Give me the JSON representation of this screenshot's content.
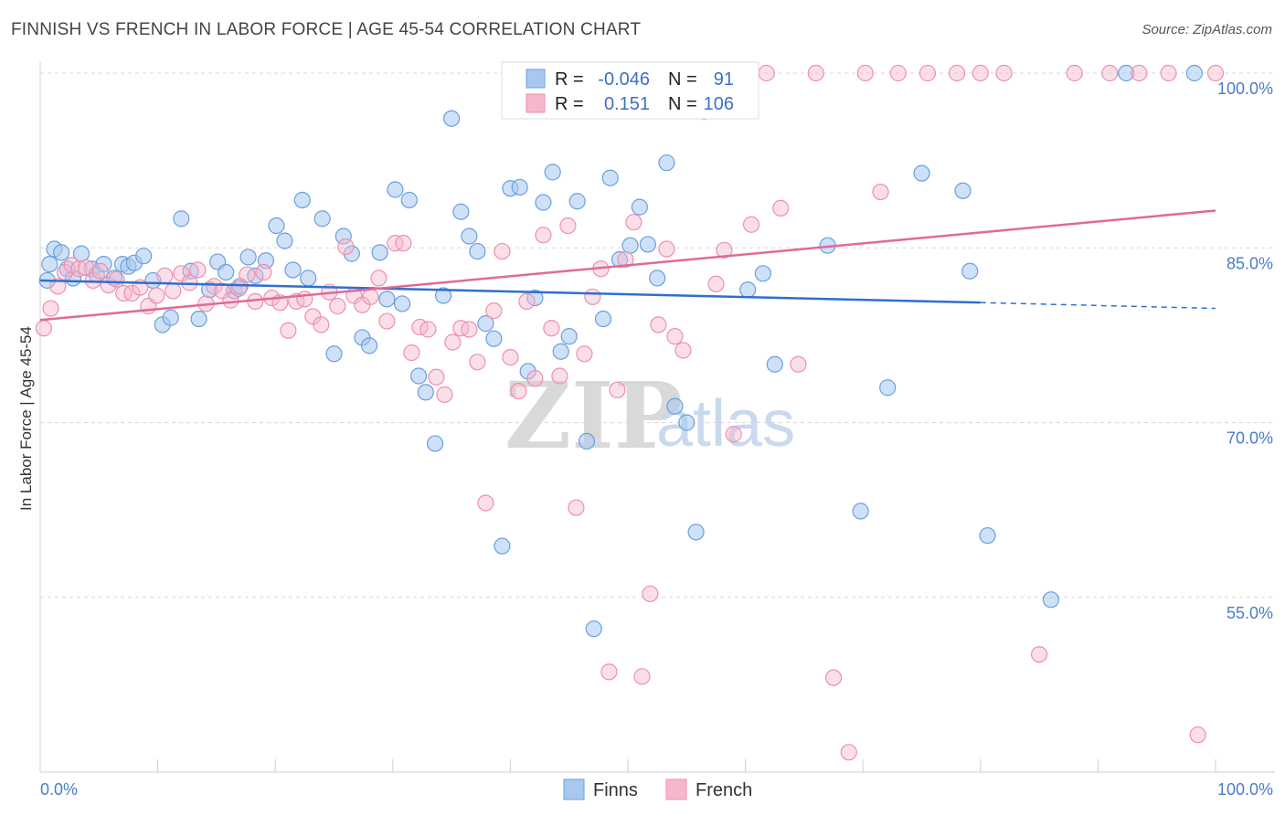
{
  "title": "FINNISH VS FRENCH IN LABOR FORCE | AGE 45-54 CORRELATION CHART",
  "source": "Source: ZipAtlas.com",
  "watermark": {
    "zip": "ZIP",
    "atlas": "atlas"
  },
  "chart_data": {
    "type": "scatter",
    "title": "FINNISH VS FRENCH IN LABOR FORCE | AGE 45-54 CORRELATION CHART",
    "ylabel": "In Labor Force | Age 45-54",
    "xlim": [
      0,
      100
    ],
    "ylim": [
      40,
      100
    ],
    "x_tick_labels": {
      "left": "0.0%",
      "right": "100.0%"
    },
    "y_ticks": [
      {
        "value": 100,
        "label": "100.0%"
      },
      {
        "value": 85,
        "label": "85.0%"
      },
      {
        "value": 70,
        "label": "70.0%"
      },
      {
        "value": 55,
        "label": "55.0%"
      }
    ],
    "grid": "horizontal dashed",
    "legend_top": [
      {
        "r_label": "R =",
        "r_value": "-0.046",
        "n_label": "N =",
        "n_value": "91",
        "color": "#a8c8f0"
      },
      {
        "r_label": "R =",
        "r_value": "0.151",
        "n_label": "N =",
        "n_value": "106",
        "color": "#f5b8cb"
      }
    ],
    "legend_bottom": [
      "Finns",
      "French"
    ],
    "colors": {
      "finns": "#6a9fe0",
      "french": "#ef8fae",
      "finns_line": "#2e6fd0",
      "french_line": "#e06a96"
    },
    "series": [
      {
        "name": "Finns",
        "trend": {
          "x0": 0,
          "y0": 82.2,
          "x1": 80,
          "y1": 80.3,
          "dash_to_x": 100,
          "dash_to_y": 79.8
        },
        "points": [
          [
            0.8,
            83.6
          ],
          [
            1.2,
            84.9
          ],
          [
            1.8,
            84.6
          ],
          [
            2.3,
            83.2
          ],
          [
            2.8,
            82.4
          ],
          [
            3.5,
            84.5
          ],
          [
            4.4,
            83.2
          ],
          [
            4.8,
            82.7
          ],
          [
            5.4,
            83.6
          ],
          [
            6.3,
            82.4
          ],
          [
            7.0,
            83.6
          ],
          [
            7.5,
            83.4
          ],
          [
            8.0,
            83.7
          ],
          [
            8.8,
            84.3
          ],
          [
            9.6,
            82.2
          ],
          [
            10.4,
            78.4
          ],
          [
            11.1,
            79.0
          ],
          [
            12.0,
            87.5
          ],
          [
            12.8,
            83.0
          ],
          [
            13.5,
            78.9
          ],
          [
            14.4,
            81.4
          ],
          [
            15.1,
            83.8
          ],
          [
            15.8,
            82.9
          ],
          [
            16.5,
            81.3
          ],
          [
            17.0,
            81.7
          ],
          [
            17.7,
            84.2
          ],
          [
            18.3,
            82.6
          ],
          [
            19.2,
            83.9
          ],
          [
            20.1,
            86.9
          ],
          [
            20.8,
            85.6
          ],
          [
            21.5,
            83.1
          ],
          [
            22.3,
            89.1
          ],
          [
            22.8,
            82.4
          ],
          [
            24.0,
            87.5
          ],
          [
            25.0,
            75.9
          ],
          [
            25.8,
            86.0
          ],
          [
            26.5,
            84.5
          ],
          [
            27.4,
            77.3
          ],
          [
            28.0,
            76.6
          ],
          [
            28.9,
            84.6
          ],
          [
            29.5,
            80.6
          ],
          [
            30.2,
            90.0
          ],
          [
            30.8,
            80.2
          ],
          [
            31.4,
            89.1
          ],
          [
            32.2,
            74.0
          ],
          [
            32.8,
            72.6
          ],
          [
            33.6,
            68.2
          ],
          [
            34.3,
            80.9
          ],
          [
            35.0,
            96.1
          ],
          [
            35.8,
            88.1
          ],
          [
            36.5,
            86.0
          ],
          [
            37.2,
            84.7
          ],
          [
            37.9,
            78.5
          ],
          [
            38.6,
            77.2
          ],
          [
            39.3,
            59.4
          ],
          [
            40.0,
            90.1
          ],
          [
            40.8,
            90.2
          ],
          [
            41.5,
            74.4
          ],
          [
            42.1,
            80.7
          ],
          [
            42.8,
            88.9
          ],
          [
            43.6,
            91.5
          ],
          [
            44.3,
            76.1
          ],
          [
            45.0,
            77.4
          ],
          [
            45.7,
            89.0
          ],
          [
            46.5,
            68.4
          ],
          [
            47.1,
            52.3
          ],
          [
            47.9,
            78.9
          ],
          [
            48.5,
            91.0
          ],
          [
            49.3,
            84.0
          ],
          [
            50.2,
            85.2
          ],
          [
            51.0,
            88.5
          ],
          [
            51.7,
            85.3
          ],
          [
            52.5,
            82.4
          ],
          [
            53.3,
            92.3
          ],
          [
            54.0,
            71.4
          ],
          [
            55.0,
            70.0
          ],
          [
            55.8,
            60.6
          ],
          [
            60.2,
            81.4
          ],
          [
            61.5,
            82.8
          ],
          [
            62.5,
            75.0
          ],
          [
            67.0,
            85.2
          ],
          [
            69.8,
            62.4
          ],
          [
            72.1,
            73.0
          ],
          [
            75.0,
            91.4
          ],
          [
            78.5,
            89.9
          ],
          [
            79.1,
            83.0
          ],
          [
            80.6,
            60.3
          ],
          [
            86.0,
            54.8
          ],
          [
            92.4,
            100.0
          ],
          [
            98.2,
            100.0
          ],
          [
            0.6,
            82.2
          ]
        ]
      },
      {
        "name": "French",
        "trend": {
          "x0": 0,
          "y0": 78.8,
          "x1": 100,
          "y1": 88.2
        },
        "points": [
          [
            0.3,
            78.1
          ],
          [
            0.9,
            79.8
          ],
          [
            1.5,
            81.7
          ],
          [
            2.1,
            82.9
          ],
          [
            2.7,
            83.5
          ],
          [
            3.3,
            83.2
          ],
          [
            3.9,
            83.3
          ],
          [
            4.5,
            82.2
          ],
          [
            5.1,
            83.0
          ],
          [
            5.8,
            81.8
          ],
          [
            6.5,
            82.3
          ],
          [
            7.1,
            81.1
          ],
          [
            7.8,
            81.1
          ],
          [
            8.5,
            81.6
          ],
          [
            9.2,
            80.0
          ],
          [
            9.9,
            80.9
          ],
          [
            10.6,
            82.6
          ],
          [
            11.3,
            81.3
          ],
          [
            12.0,
            82.8
          ],
          [
            12.7,
            82.0
          ],
          [
            13.4,
            83.1
          ],
          [
            14.1,
            80.2
          ],
          [
            14.8,
            81.7
          ],
          [
            15.5,
            81.3
          ],
          [
            16.2,
            80.5
          ],
          [
            16.9,
            81.5
          ],
          [
            17.6,
            82.7
          ],
          [
            18.3,
            80.4
          ],
          [
            19.0,
            82.9
          ],
          [
            19.7,
            80.7
          ],
          [
            20.4,
            80.3
          ],
          [
            21.1,
            77.9
          ],
          [
            21.8,
            80.4
          ],
          [
            22.5,
            80.6
          ],
          [
            23.2,
            79.1
          ],
          [
            23.9,
            78.4
          ],
          [
            24.6,
            81.2
          ],
          [
            25.3,
            80.0
          ],
          [
            26.0,
            85.1
          ],
          [
            26.7,
            80.9
          ],
          [
            27.4,
            80.1
          ],
          [
            28.1,
            80.8
          ],
          [
            28.8,
            82.4
          ],
          [
            29.5,
            78.7
          ],
          [
            30.2,
            85.4
          ],
          [
            30.9,
            85.4
          ],
          [
            31.6,
            76.0
          ],
          [
            32.3,
            78.2
          ],
          [
            33.0,
            78.0
          ],
          [
            33.7,
            73.9
          ],
          [
            34.4,
            72.4
          ],
          [
            35.1,
            76.9
          ],
          [
            35.8,
            78.1
          ],
          [
            36.5,
            78.0
          ],
          [
            37.2,
            75.2
          ],
          [
            37.9,
            63.1
          ],
          [
            38.6,
            79.6
          ],
          [
            39.3,
            84.7
          ],
          [
            40.0,
            75.6
          ],
          [
            40.7,
            72.7
          ],
          [
            41.4,
            80.4
          ],
          [
            42.1,
            73.8
          ],
          [
            42.8,
            86.1
          ],
          [
            43.5,
            78.1
          ],
          [
            44.2,
            74.0
          ],
          [
            44.9,
            86.9
          ],
          [
            45.6,
            62.7
          ],
          [
            46.3,
            75.9
          ],
          [
            47.0,
            80.8
          ],
          [
            47.7,
            83.2
          ],
          [
            48.4,
            48.6
          ],
          [
            49.1,
            72.8
          ],
          [
            49.8,
            84.0
          ],
          [
            50.5,
            87.2
          ],
          [
            51.2,
            48.2
          ],
          [
            51.9,
            55.3
          ],
          [
            52.6,
            78.4
          ],
          [
            53.3,
            84.9
          ],
          [
            54.0,
            77.4
          ],
          [
            54.7,
            76.2
          ],
          [
            55.4,
            100.0
          ],
          [
            56.5,
            96.7
          ],
          [
            57.5,
            81.9
          ],
          [
            58.2,
            84.8
          ],
          [
            59.0,
            69.0
          ],
          [
            60.5,
            87.0
          ],
          [
            61.8,
            100.0
          ],
          [
            63.0,
            88.4
          ],
          [
            64.5,
            75.0
          ],
          [
            66.0,
            100.0
          ],
          [
            67.5,
            48.1
          ],
          [
            68.8,
            41.7
          ],
          [
            70.2,
            100.0
          ],
          [
            71.5,
            89.8
          ],
          [
            73.0,
            100.0
          ],
          [
            75.5,
            100.0
          ],
          [
            78.0,
            100.0
          ],
          [
            80.0,
            100.0
          ],
          [
            82.0,
            100.0
          ],
          [
            85.0,
            50.1
          ],
          [
            88.0,
            100.0
          ],
          [
            91.0,
            100.0
          ],
          [
            93.5,
            100.0
          ],
          [
            96.0,
            100.0
          ],
          [
            98.5,
            43.2
          ],
          [
            100.0,
            100.0
          ]
        ]
      }
    ]
  }
}
